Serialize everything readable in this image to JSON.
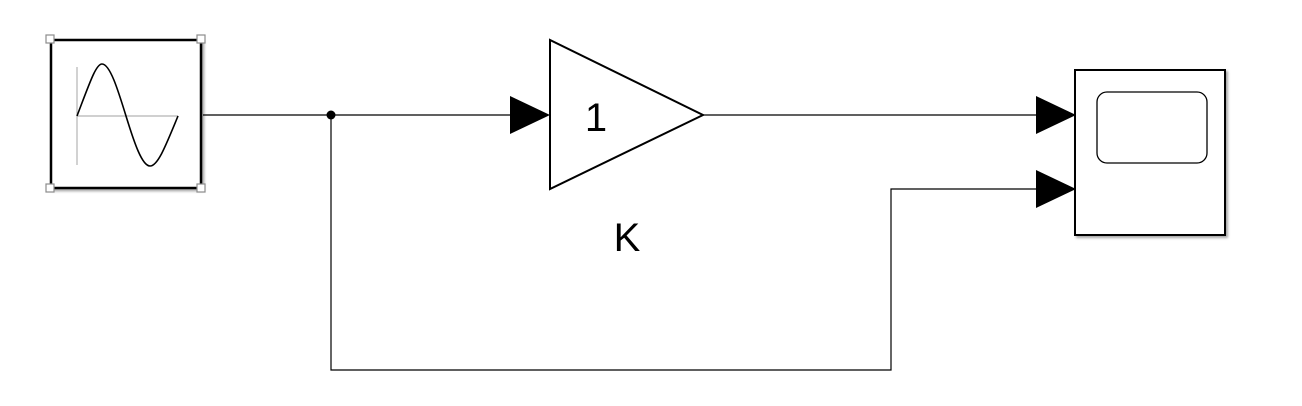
{
  "diagram": {
    "blocks": [
      {
        "id": "sine-wave",
        "type": "source",
        "icon": "sine-wave-icon",
        "selected": true
      },
      {
        "id": "gain",
        "type": "gain",
        "value_text": "1",
        "name_label": "K"
      },
      {
        "id": "scope",
        "type": "sink",
        "icon": "scope-screen-icon",
        "input_ports": 2
      }
    ],
    "connections": [
      {
        "from": "sine-wave",
        "to": "gain",
        "branch": true
      },
      {
        "from": "gain",
        "to": "scope",
        "port": 1
      },
      {
        "from": "sine-wave",
        "to": "scope",
        "port": 2,
        "via": "branch-point"
      }
    ],
    "colors": {
      "line": "#000000",
      "block_border": "#000000",
      "background": "#ffffff",
      "handle": "#8c8c8c"
    }
  }
}
